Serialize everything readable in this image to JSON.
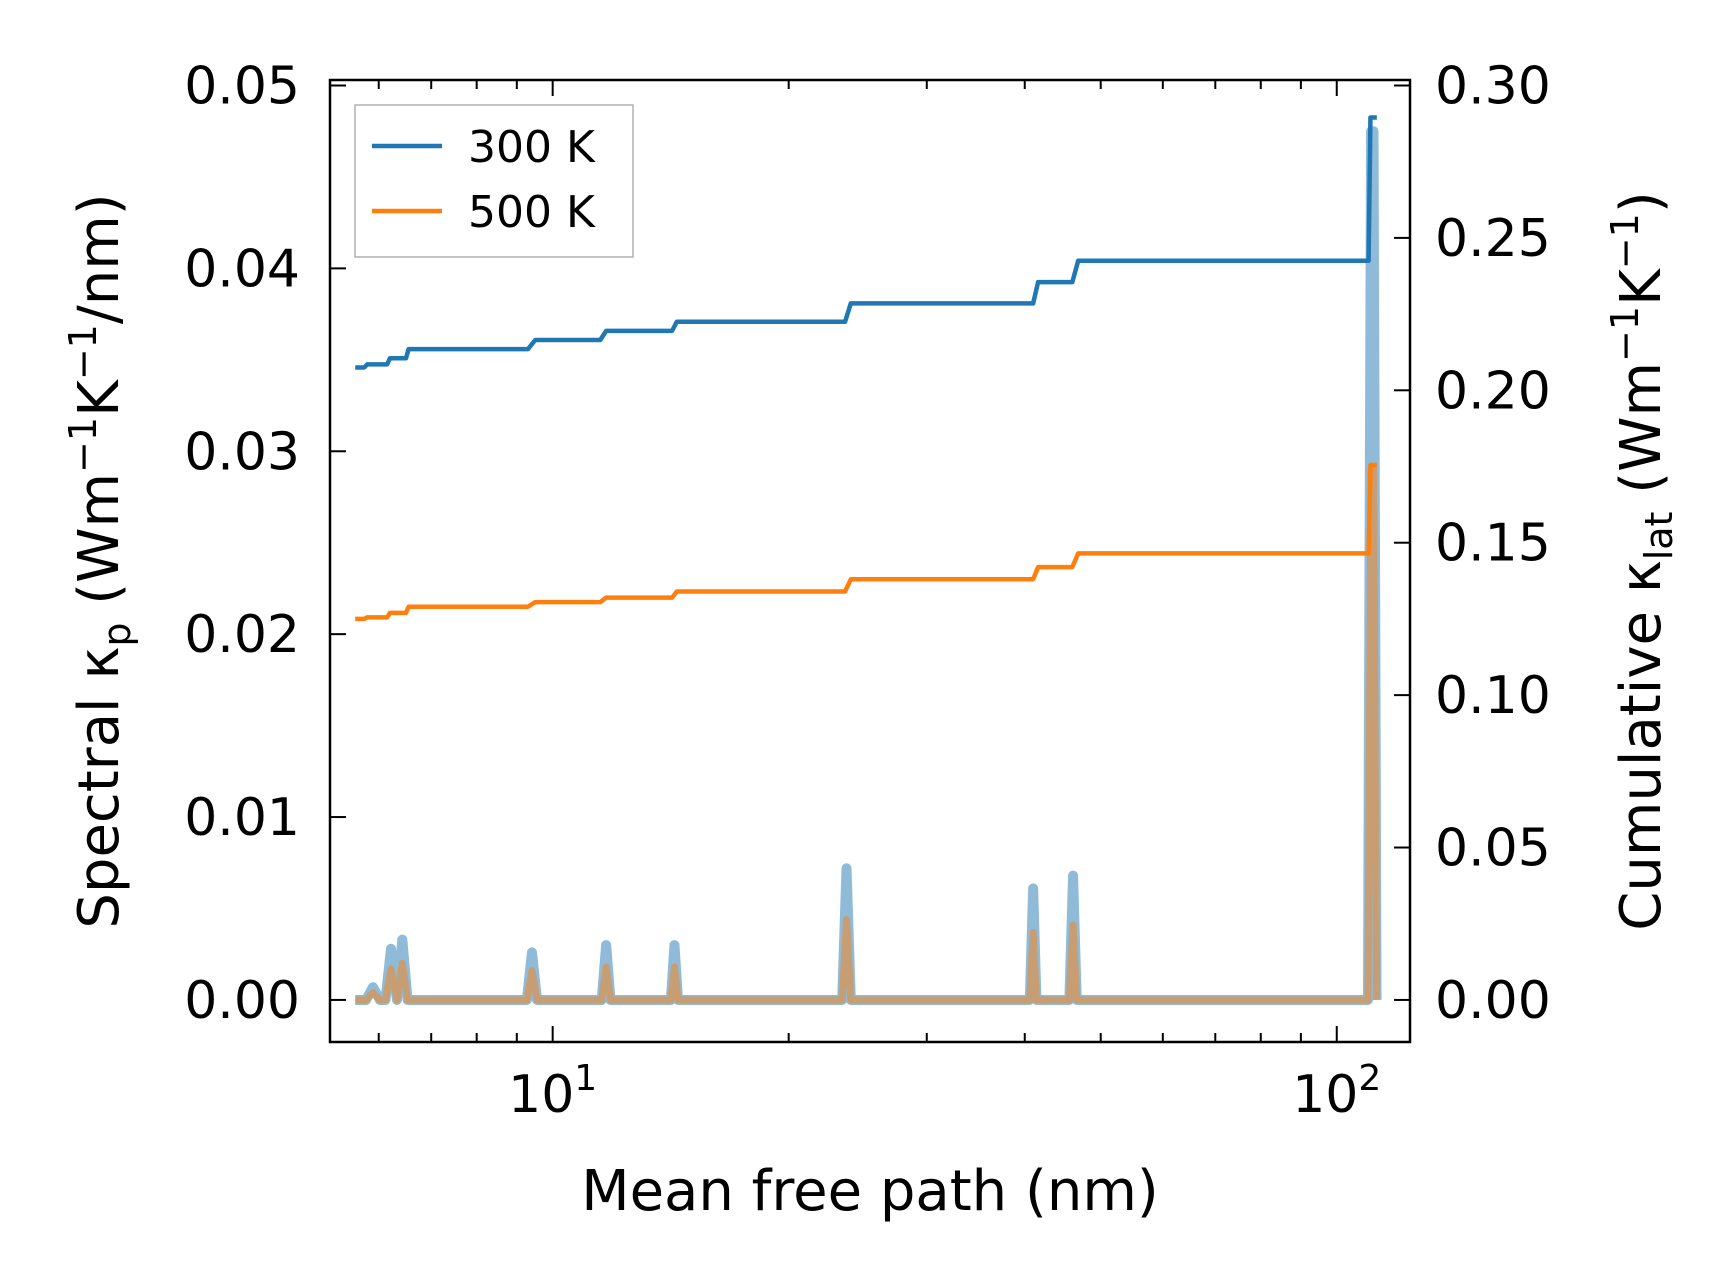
{
  "chart_data": {
    "type": "line",
    "x_scale": "log",
    "xlim": [
      5.2,
      124
    ],
    "xlabel": "Mean free path (nm)",
    "x_ticks": [
      {
        "value": 10,
        "base": "10",
        "exp": "1"
      },
      {
        "value": 100,
        "base": "10",
        "exp": "2"
      }
    ],
    "y_left": {
      "label_main": "Spectral κ",
      "label_sub": "p",
      "label_units_open": " (Wm",
      "label_sup1": "−1",
      "label_mid": "K",
      "label_sup2": "−1",
      "label_units_close": "/nm)",
      "lim": [
        -0.0023,
        0.0503
      ],
      "ticks": [
        0.0,
        0.01,
        0.02,
        0.03,
        0.04,
        0.05
      ],
      "tick_labels": [
        "0.00",
        "0.01",
        "0.02",
        "0.03",
        "0.04",
        "0.05"
      ]
    },
    "y_right": {
      "label_main": "Cumulative κ",
      "label_sub": "lat",
      "label_units_open": " (Wm",
      "label_sup1": "−1",
      "label_mid": "K",
      "label_sup2": "−1",
      "label_units_close": ")",
      "lim": [
        -0.0138,
        0.3018
      ],
      "ticks": [
        0.0,
        0.05,
        0.1,
        0.15,
        0.2,
        0.25,
        0.3
      ],
      "tick_labels": [
        "0.00",
        "0.05",
        "0.10",
        "0.15",
        "0.20",
        "0.25",
        "0.30"
      ]
    },
    "legend": {
      "position": "upper-left",
      "entries": [
        {
          "label": "300 K",
          "color": "#1f77b4"
        },
        {
          "label": "500 K",
          "color": "#ff7f0e"
        }
      ]
    },
    "cumulative_series": [
      {
        "name": "300 K",
        "axis": "right",
        "color": "#1f77b4",
        "x": [
          5.6,
          5.75,
          5.8,
          6.15,
          6.2,
          6.5,
          6.55,
          9.3,
          9.5,
          11.5,
          11.7,
          14.2,
          14.4,
          23.6,
          24.0,
          41.0,
          41.6,
          46.0,
          46.8,
          109.8,
          110.4,
          112.5
        ],
        "y": [
          0.2075,
          0.2075,
          0.2085,
          0.2085,
          0.2105,
          0.2105,
          0.2135,
          0.2135,
          0.2165,
          0.2165,
          0.2195,
          0.2195,
          0.2225,
          0.2225,
          0.2285,
          0.2285,
          0.2355,
          0.2355,
          0.2425,
          0.2425,
          0.2895,
          0.2895
        ]
      },
      {
        "name": "500 K",
        "axis": "right",
        "color": "#ff7f0e",
        "x": [
          5.6,
          5.75,
          5.8,
          6.15,
          6.2,
          6.5,
          6.55,
          9.3,
          9.5,
          11.5,
          11.7,
          14.2,
          14.4,
          23.6,
          24.0,
          41.0,
          41.6,
          46.0,
          46.8,
          109.8,
          110.4,
          112.5
        ],
        "y": [
          0.125,
          0.125,
          0.1255,
          0.1255,
          0.127,
          0.127,
          0.129,
          0.129,
          0.1305,
          0.1305,
          0.132,
          0.132,
          0.134,
          0.134,
          0.138,
          0.138,
          0.142,
          0.142,
          0.1465,
          0.1465,
          0.1755,
          0.1755
        ]
      }
    ],
    "spectral_series": [
      {
        "name": "300 K",
        "axis": "left",
        "color": "#1f77b4",
        "opacity": 0.5,
        "x": [
          5.6,
          5.78,
          5.9,
          6.02,
          6.12,
          6.22,
          6.33,
          6.43,
          6.53,
          6.63,
          9.27,
          9.41,
          9.55,
          11.55,
          11.7,
          11.85,
          14.15,
          14.3,
          14.45,
          23.4,
          23.7,
          24.0,
          40.6,
          41.0,
          41.4,
          45.6,
          46.1,
          46.6,
          109.6,
          110.6,
          111.4,
          112.4
        ],
        "y": [
          0,
          0,
          0.0007,
          0,
          0,
          0.0028,
          0,
          0.0033,
          0,
          0,
          0,
          0.0026,
          0,
          0,
          0.003,
          0,
          0,
          0.003,
          0,
          0,
          0.0072,
          0,
          0,
          0.0061,
          0,
          0,
          0.0068,
          0,
          0,
          0.0475,
          0.0475,
          0
        ]
      },
      {
        "name": "500 K",
        "axis": "left",
        "color": "#ff7f0e",
        "opacity": 0.5,
        "x": [
          5.6,
          5.78,
          5.9,
          6.02,
          6.12,
          6.22,
          6.33,
          6.43,
          6.53,
          6.63,
          9.27,
          9.41,
          9.55,
          11.55,
          11.7,
          11.85,
          14.15,
          14.3,
          14.45,
          23.4,
          23.7,
          24.0,
          40.6,
          41.0,
          41.4,
          45.6,
          46.1,
          46.6,
          109.6,
          110.6,
          111.4,
          112.4
        ],
        "y": [
          0,
          0,
          0.0004,
          0,
          0,
          0.0017,
          0,
          0.002,
          0,
          0,
          0,
          0.0016,
          0,
          0,
          0.0018,
          0,
          0,
          0.0018,
          0,
          0,
          0.0044,
          0,
          0,
          0.0037,
          0,
          0,
          0.0041,
          0,
          0,
          0.029,
          0.029,
          0
        ]
      }
    ]
  }
}
